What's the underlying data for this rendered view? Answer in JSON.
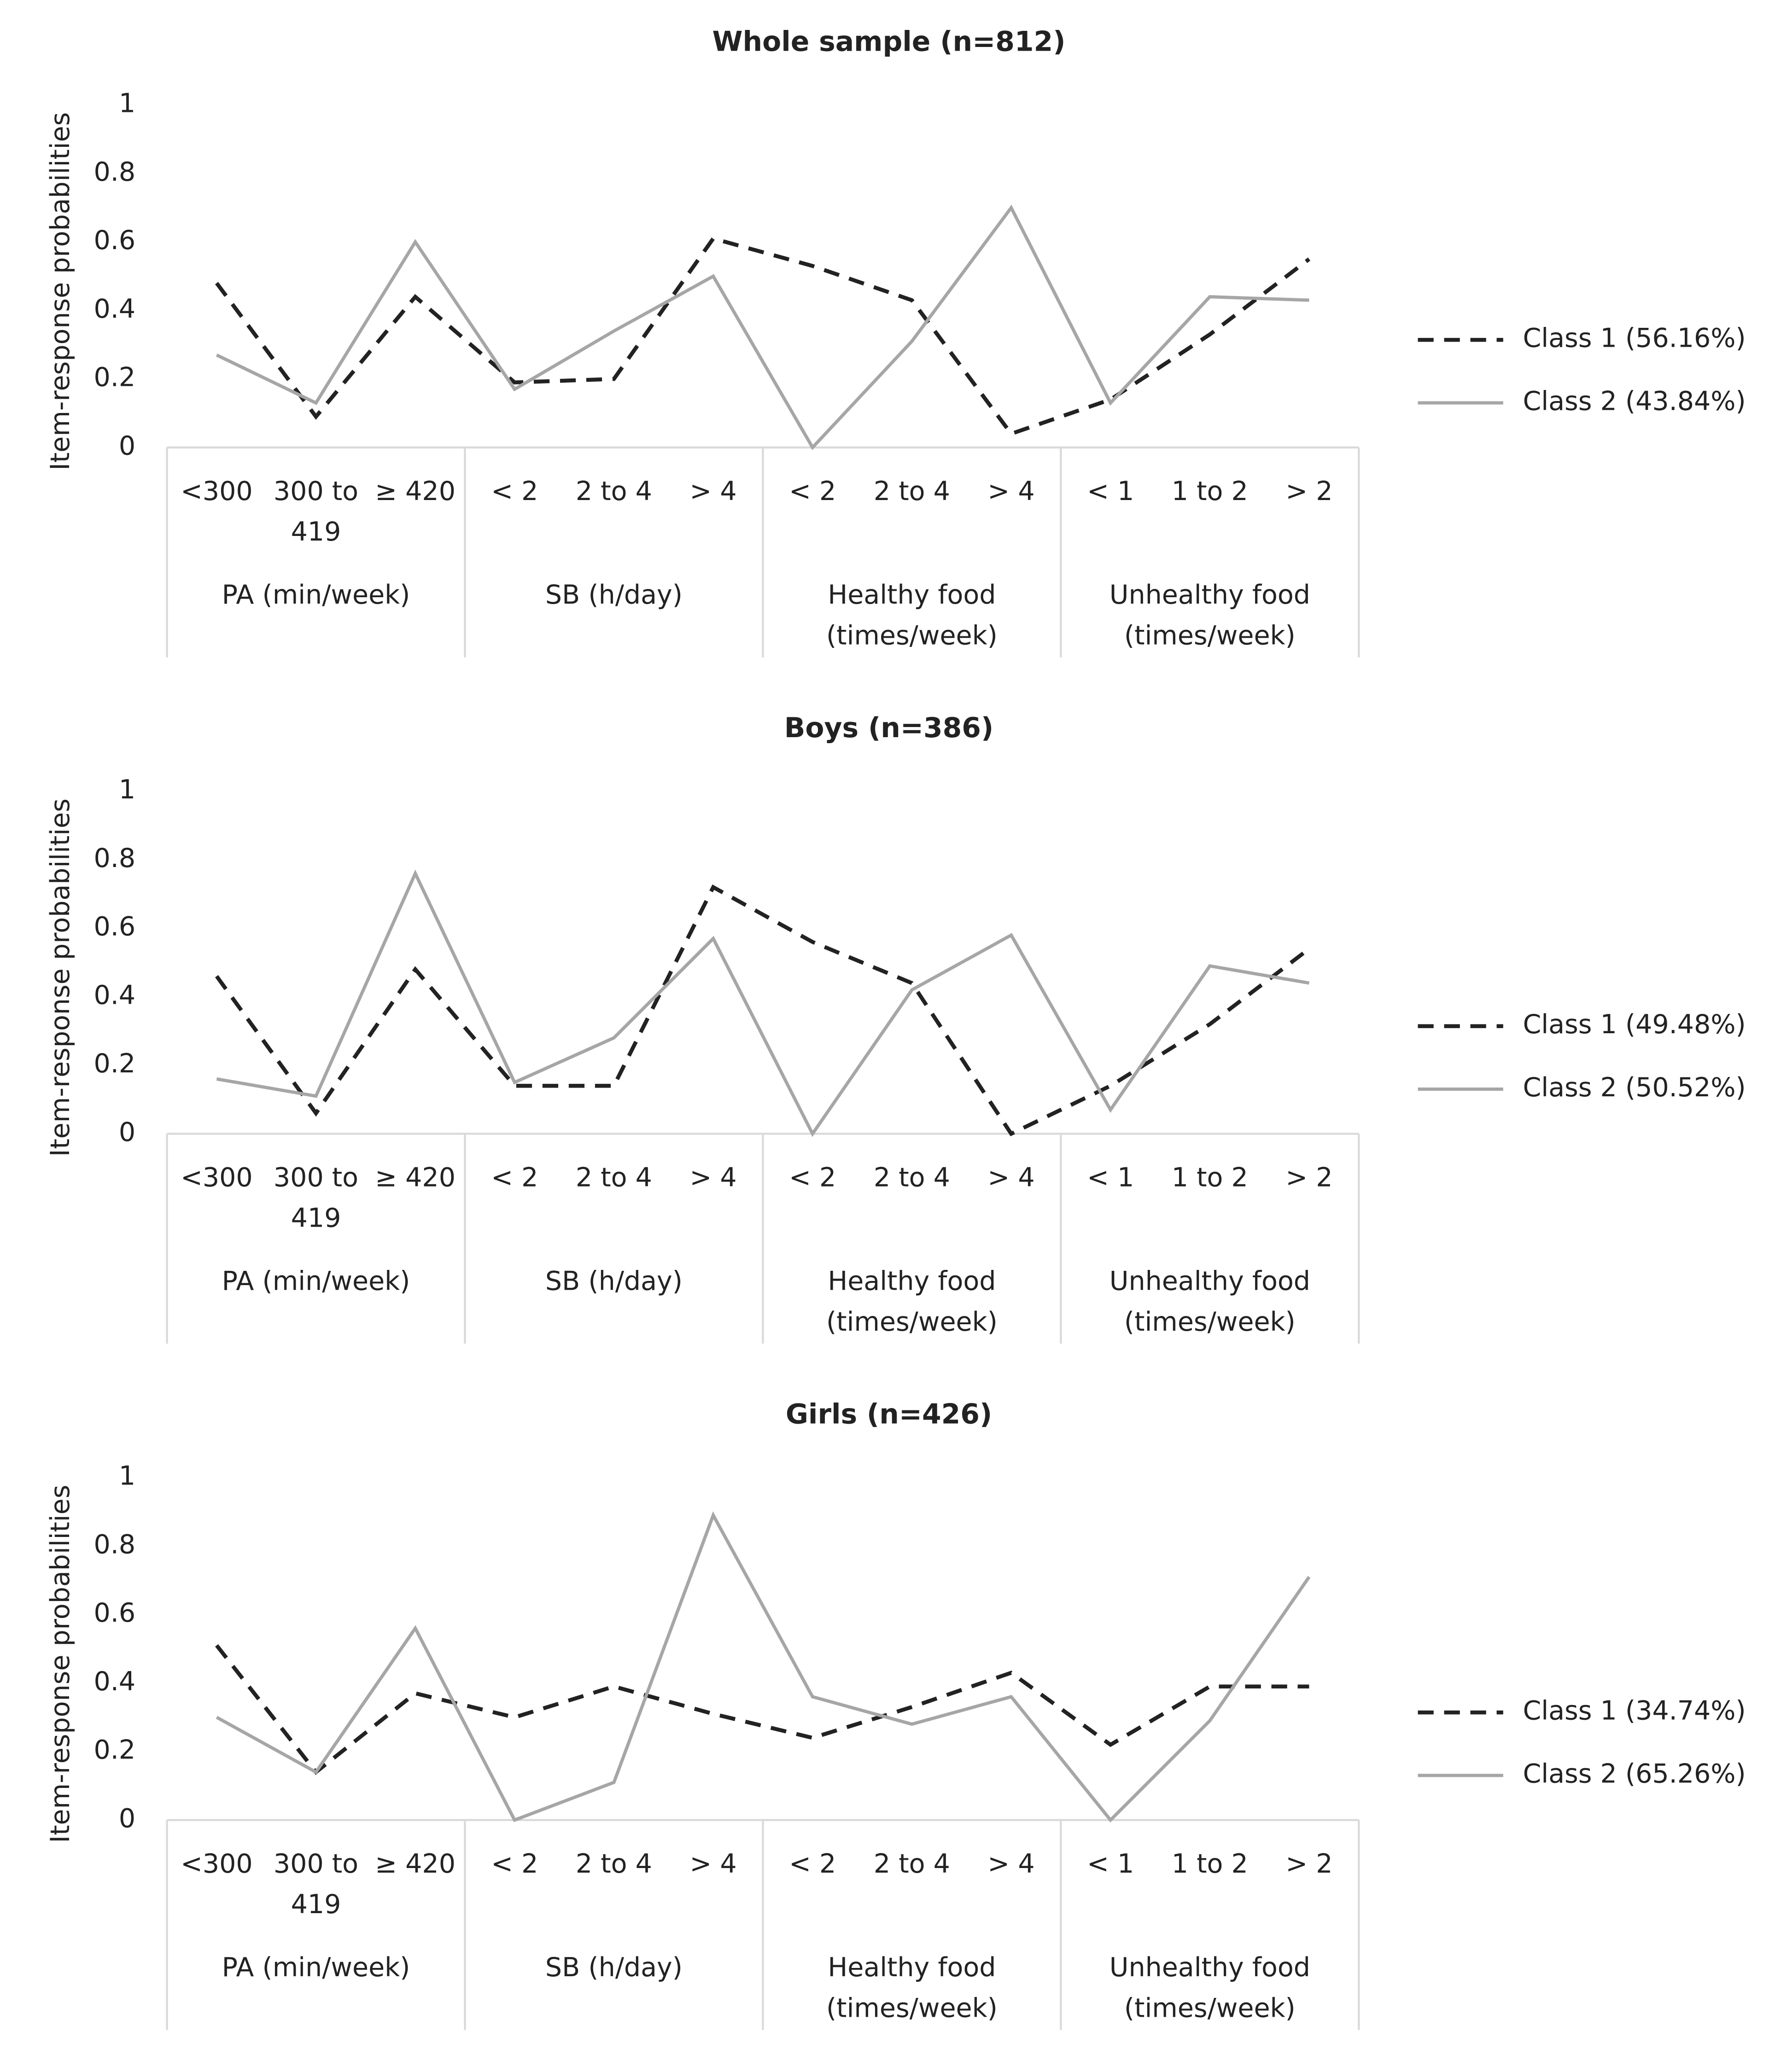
{
  "chart_data": [
    {
      "type": "line",
      "title": "Whole sample (n=812)",
      "ylabel": "Item-response probabilities",
      "groups": [
        {
          "name": "PA (min/week)",
          "categories": [
            "<300",
            "300 to 419",
            "≥ 420"
          ]
        },
        {
          "name": "SB (h/day)",
          "categories": [
            "< 2",
            "2 to 4",
            "> 4"
          ]
        },
        {
          "name": "Healthy food (times/week)",
          "categories": [
            "< 2",
            "2 to 4",
            "> 4"
          ]
        },
        {
          "name": "Unhealthy food (times/week)",
          "categories": [
            "< 1",
            "1 to 2",
            "> 2"
          ]
        }
      ],
      "ylim": [
        0,
        1
      ],
      "yticks": [
        0,
        0.2,
        0.4,
        0.6,
        0.8,
        1
      ],
      "grid": false,
      "legend": "right",
      "series": [
        {
          "name": "Class 1 (56.16%)",
          "color": "#222222",
          "style": "dashed",
          "values": [
            0.48,
            0.09,
            0.44,
            0.19,
            0.2,
            0.61,
            0.53,
            0.43,
            0.04,
            0.14,
            0.33,
            0.55
          ]
        },
        {
          "name": "Class 2 (43.84%)",
          "color": "#a6a6a6",
          "style": "solid",
          "values": [
            0.27,
            0.13,
            0.6,
            0.17,
            0.34,
            0.5,
            0.0,
            0.31,
            0.7,
            0.13,
            0.44,
            0.43
          ]
        }
      ]
    },
    {
      "type": "line",
      "title": "Boys (n=386)",
      "ylabel": "Item-response probabilities",
      "groups": [
        {
          "name": "PA (min/week)",
          "categories": [
            "<300",
            "300 to 419",
            "≥ 420"
          ]
        },
        {
          "name": "SB (h/day)",
          "categories": [
            "< 2",
            "2 to 4",
            "> 4"
          ]
        },
        {
          "name": "Healthy food (times/week)",
          "categories": [
            "< 2",
            "2 to 4",
            "> 4"
          ]
        },
        {
          "name": "Unhealthy food (times/week)",
          "categories": [
            "< 1",
            "1 to 2",
            "> 2"
          ]
        }
      ],
      "ylim": [
        0,
        1
      ],
      "yticks": [
        0,
        0.2,
        0.4,
        0.6,
        0.8,
        1
      ],
      "grid": false,
      "legend": "right",
      "series": [
        {
          "name": "Class 1 (49.48%)",
          "color": "#222222",
          "style": "dashed",
          "values": [
            0.46,
            0.06,
            0.48,
            0.14,
            0.14,
            0.72,
            0.56,
            0.44,
            0.0,
            0.14,
            0.32,
            0.54
          ]
        },
        {
          "name": "Class 2 (50.52%)",
          "color": "#a6a6a6",
          "style": "solid",
          "values": [
            0.16,
            0.11,
            0.76,
            0.15,
            0.28,
            0.57,
            0.0,
            0.42,
            0.58,
            0.07,
            0.49,
            0.44
          ]
        }
      ]
    },
    {
      "type": "line",
      "title": "Girls (n=426)",
      "ylabel": "Item-response probabilities",
      "groups": [
        {
          "name": "PA (min/week)",
          "categories": [
            "<300",
            "300 to 419",
            "≥ 420"
          ]
        },
        {
          "name": "SB (h/day)",
          "categories": [
            "< 2",
            "2 to 4",
            "> 4"
          ]
        },
        {
          "name": "Healthy food (times/week)",
          "categories": [
            "< 2",
            "2 to 4",
            "> 4"
          ]
        },
        {
          "name": "Unhealthy food (times/week)",
          "categories": [
            "< 1",
            "1 to 2",
            "> 2"
          ]
        }
      ],
      "ylim": [
        0,
        1
      ],
      "yticks": [
        0,
        0.2,
        0.4,
        0.6,
        0.8,
        1
      ],
      "grid": false,
      "legend": "right",
      "series": [
        {
          "name": "Class 1 (34.74%)",
          "color": "#222222",
          "style": "dashed",
          "values": [
            0.51,
            0.14,
            0.37,
            0.3,
            0.39,
            0.31,
            0.24,
            0.33,
            0.43,
            0.22,
            0.39,
            0.39
          ]
        },
        {
          "name": "Class 2 (65.26%)",
          "color": "#a6a6a6",
          "style": "solid",
          "values": [
            0.3,
            0.14,
            0.56,
            0.0,
            0.11,
            0.89,
            0.36,
            0.28,
            0.36,
            0.0,
            0.29,
            0.71
          ]
        }
      ]
    }
  ]
}
